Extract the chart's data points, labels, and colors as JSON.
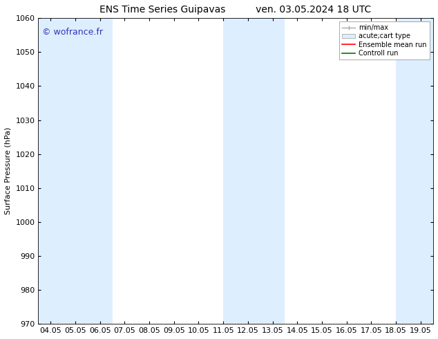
{
  "title_left": "ENS Time Series Guipavas",
  "title_right": "ven. 03.05.2024 18 UTC",
  "ylabel": "Surface Pressure (hPa)",
  "ylim": [
    970,
    1060
  ],
  "yticks": [
    970,
    980,
    990,
    1000,
    1010,
    1020,
    1030,
    1040,
    1050,
    1060
  ],
  "xtick_labels": [
    "04.05",
    "05.05",
    "06.05",
    "07.05",
    "08.05",
    "09.05",
    "10.05",
    "11.05",
    "12.05",
    "13.05",
    "14.05",
    "15.05",
    "16.05",
    "17.05",
    "18.05",
    "19.05"
  ],
  "watermark": "© wofrance.fr",
  "watermark_color": "#3333bb",
  "bg_color": "#ffffff",
  "plot_bg_color": "#ffffff",
  "shaded_bands": [
    {
      "xmin": -0.5,
      "xmax": 2.5,
      "color": "#ddeeff"
    },
    {
      "xmin": 7.0,
      "xmax": 9.5,
      "color": "#ddeeff"
    },
    {
      "xmin": 14.0,
      "xmax": 15.5,
      "color": "#ddeeff"
    }
  ],
  "legend_items": [
    {
      "label": "min/max",
      "type": "errorbar",
      "color": "#aaaaaa"
    },
    {
      "label": "acute;cart type",
      "type": "box",
      "color": "#ddeeff"
    },
    {
      "label": "Ensemble mean run",
      "type": "line",
      "color": "#ff0000"
    },
    {
      "label": "Controll run",
      "type": "line",
      "color": "#007700"
    }
  ],
  "title_fontsize": 10,
  "label_fontsize": 8,
  "tick_fontsize": 8,
  "legend_fontsize": 7
}
